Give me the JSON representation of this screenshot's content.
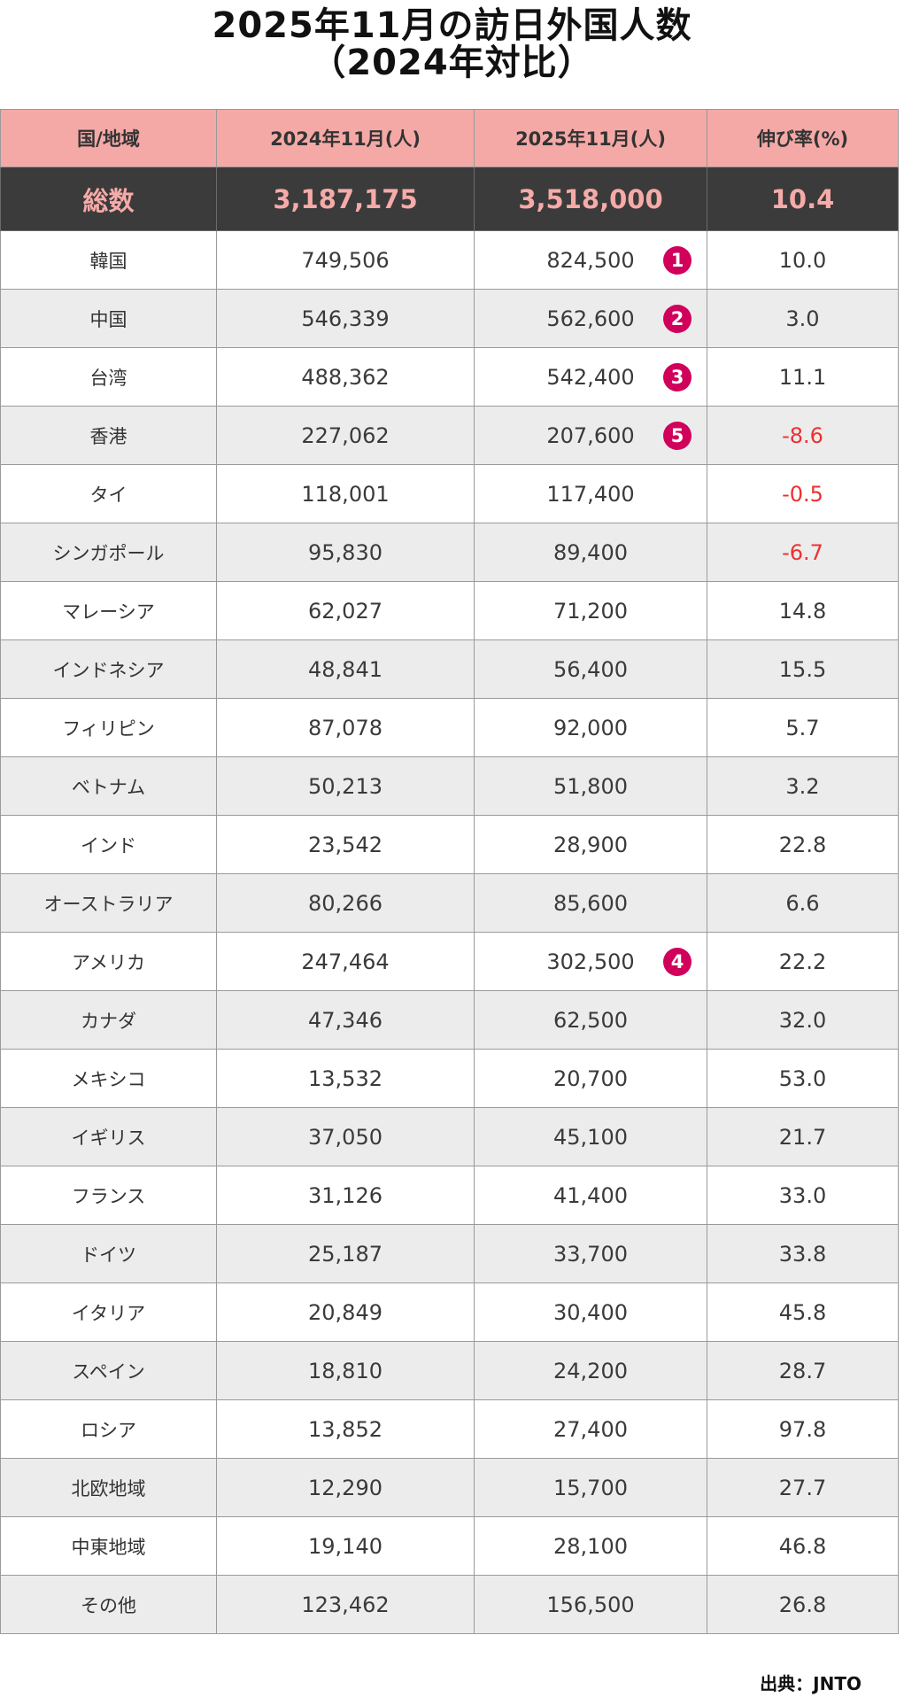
{
  "title": {
    "line1": "2025年11月の訪日外国人数",
    "line2": "（2024年対比）"
  },
  "table": {
    "headers": [
      "国/地域",
      "2024年11月(人)",
      "2025年11月(人)",
      "伸び率(%)"
    ],
    "total": {
      "country": "総数",
      "v2024": "3,187,175",
      "v2025": "3,518,000",
      "rate": "10.4"
    },
    "rows": [
      {
        "country": "韓国",
        "v2024": "749,506",
        "v2025": "824,500",
        "rank": "1",
        "rate": "10.0"
      },
      {
        "country": "中国",
        "v2024": "546,339",
        "v2025": "562,600",
        "rank": "2",
        "rate": "3.0"
      },
      {
        "country": "台湾",
        "v2024": "488,362",
        "v2025": "542,400",
        "rank": "3",
        "rate": "11.1"
      },
      {
        "country": "香港",
        "v2024": "227,062",
        "v2025": "207,600",
        "rank": "5",
        "rate": "-8.6"
      },
      {
        "country": "タイ",
        "v2024": "118,001",
        "v2025": "117,400",
        "rank": "",
        "rate": "-0.5"
      },
      {
        "country": "シンガポール",
        "v2024": "95,830",
        "v2025": "89,400",
        "rank": "",
        "rate": "-6.7"
      },
      {
        "country": "マレーシア",
        "v2024": "62,027",
        "v2025": "71,200",
        "rank": "",
        "rate": "14.8"
      },
      {
        "country": "インドネシア",
        "v2024": "48,841",
        "v2025": "56,400",
        "rank": "",
        "rate": "15.5"
      },
      {
        "country": "フィリピン",
        "v2024": "87,078",
        "v2025": "92,000",
        "rank": "",
        "rate": "5.7"
      },
      {
        "country": "ベトナム",
        "v2024": "50,213",
        "v2025": "51,800",
        "rank": "",
        "rate": "3.2"
      },
      {
        "country": "インド",
        "v2024": "23,542",
        "v2025": "28,900",
        "rank": "",
        "rate": "22.8"
      },
      {
        "country": "オーストラリア",
        "v2024": "80,266",
        "v2025": "85,600",
        "rank": "",
        "rate": "6.6"
      },
      {
        "country": "アメリカ",
        "v2024": "247,464",
        "v2025": "302,500",
        "rank": "4",
        "rate": "22.2"
      },
      {
        "country": "カナダ",
        "v2024": "47,346",
        "v2025": "62,500",
        "rank": "",
        "rate": "32.0"
      },
      {
        "country": "メキシコ",
        "v2024": "13,532",
        "v2025": "20,700",
        "rank": "",
        "rate": "53.0"
      },
      {
        "country": "イギリス",
        "v2024": "37,050",
        "v2025": "45,100",
        "rank": "",
        "rate": "21.7"
      },
      {
        "country": "フランス",
        "v2024": "31,126",
        "v2025": "41,400",
        "rank": "",
        "rate": "33.0"
      },
      {
        "country": "ドイツ",
        "v2024": "25,187",
        "v2025": "33,700",
        "rank": "",
        "rate": "33.8"
      },
      {
        "country": "イタリア",
        "v2024": "20,849",
        "v2025": "30,400",
        "rank": "",
        "rate": "45.8"
      },
      {
        "country": "スペイン",
        "v2024": "18,810",
        "v2025": "24,200",
        "rank": "",
        "rate": "28.7"
      },
      {
        "country": "ロシア",
        "v2024": "13,852",
        "v2025": "27,400",
        "rank": "",
        "rate": "97.8"
      },
      {
        "country": "北欧地域",
        "v2024": "12,290",
        "v2025": "15,700",
        "rank": "",
        "rate": "27.7"
      },
      {
        "country": "中東地域",
        "v2024": "19,140",
        "v2025": "28,100",
        "rank": "",
        "rate": "46.8"
      },
      {
        "country": "その他",
        "v2024": "123,462",
        "v2025": "156,500",
        "rank": "",
        "rate": "26.8"
      }
    ]
  },
  "source": "出典：JNTO",
  "colors": {
    "header_bg": "#f4a9a6",
    "total_bg": "#3b3b3b",
    "total_text": "#f6aba8",
    "rank_badge": "#d0005b",
    "negative": "#ee3030",
    "stripe": "#ececec"
  }
}
